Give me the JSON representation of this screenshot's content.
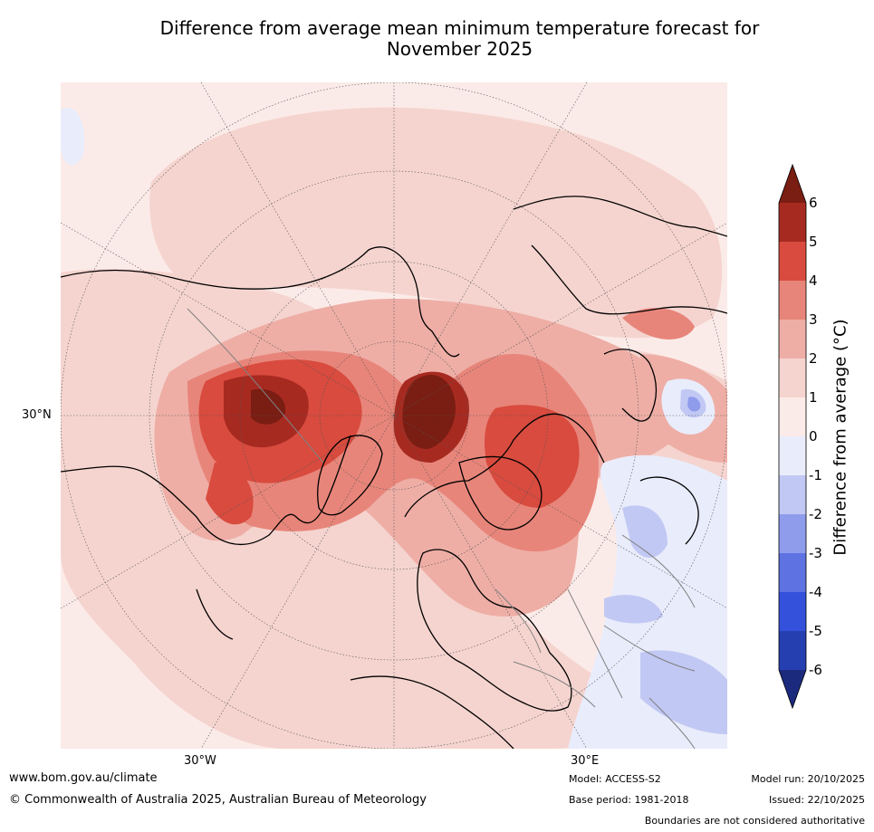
{
  "title": {
    "line1": "Difference from average mean minimum temperature forecast for",
    "line2": "November 2025"
  },
  "map": {
    "lat_label": "30°N",
    "lon_labels": [
      "30°W",
      "30°E"
    ]
  },
  "colorbar": {
    "label": "Difference from average ($^\\circ$C)",
    "label_text": "Difference from average (°C)",
    "ticks": [
      "6",
      "5",
      "4",
      "3",
      "2",
      "1",
      "0",
      "-1",
      "-2",
      "-3",
      "-4",
      "-5",
      "-6"
    ],
    "colors": {
      "above_max": "#7a1d12",
      "5_to_6": "#a72a21",
      "4_to_5": "#d84b3e",
      "3_to_4": "#e8857a",
      "2_to_3": "#eeaea6",
      "1_to_2": "#f5d4cf",
      "0_to_1": "#fbebe8",
      "m1_to_0": "#e9ecfb",
      "m2_to_m1": "#c1c8f3",
      "m3_to_m2": "#8f9cec",
      "m4_to_m3": "#5e72e2",
      "m5_to_m4": "#3451db",
      "m6_to_m5": "#263fb0",
      "below_min": "#1c2a7e"
    }
  },
  "footer": {
    "url": "www.bom.gov.au/climate",
    "copyright": "© Commonwealth of Australia 2025, Australian Bureau of Meteorology",
    "model": "Model: ACCESS-S2",
    "base_period": "Base period: 1981-2018",
    "model_run": "Model run: 20/10/2025",
    "issued": "Issued: 22/10/2025",
    "disclaimer": "Boundaries are not considered authoritative"
  }
}
